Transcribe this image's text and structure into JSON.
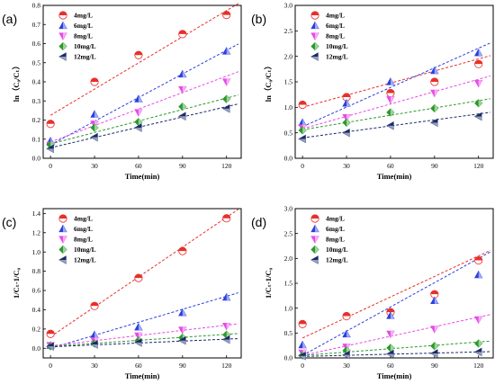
{
  "colors": [
    "#e8302a",
    "#2a3fe0",
    "#e84ae8",
    "#2a9a2a",
    "#1a2a6a"
  ],
  "markers": [
    "circle",
    "triangle-up",
    "triangle-down",
    "diamond",
    "triangle-left"
  ],
  "chart_data": [
    {
      "type": "scatter",
      "panel": "(a)",
      "ylabel": "ln（C₀/Cₜ）",
      "xlabel": "Time(min)",
      "xlim": [
        -5,
        130
      ],
      "ylim": [
        0,
        0.8
      ],
      "xticks": [
        "0",
        "30",
        "60",
        "90",
        "120"
      ],
      "xtick_values": [
        0,
        30,
        60,
        90,
        120
      ],
      "yticks": [
        "0.0",
        "0.1",
        "0.2",
        "0.3",
        "0.4",
        "0.5",
        "0.6",
        "0.7",
        "0.8"
      ],
      "ytick_values": [
        0,
        0.1,
        0.2,
        0.3,
        0.4,
        0.5,
        0.6,
        0.7,
        0.8
      ],
      "legend_position": "top-left",
      "x": [
        0,
        30,
        60,
        90,
        120
      ],
      "series": [
        {
          "name": "4mg/L",
          "values": [
            0.18,
            0.4,
            0.54,
            0.65,
            0.75
          ],
          "fit": [
            0.225,
            0.773
          ]
        },
        {
          "name": "6mg/L",
          "values": [
            0.09,
            0.23,
            0.31,
            0.44,
            0.56
          ],
          "fit": [
            0.07,
            0.565
          ]
        },
        {
          "name": "8mg/L",
          "values": [
            0.07,
            0.18,
            0.24,
            0.36,
            0.4
          ],
          "fit": [
            0.085,
            0.43
          ]
        },
        {
          "name": "10mg/L",
          "values": [
            0.07,
            0.16,
            0.19,
            0.27,
            0.31
          ],
          "fit": [
            0.075,
            0.315
          ]
        },
        {
          "name": "12mg/L",
          "values": [
            0.05,
            0.11,
            0.16,
            0.22,
            0.26
          ],
          "fit": [
            0.055,
            0.27
          ]
        }
      ]
    },
    {
      "type": "scatter",
      "panel": "(b)",
      "ylabel": "ln（C₀/Cₜ）",
      "xlabel": "Time(min)",
      "xlim": [
        -5,
        130
      ],
      "ylim": [
        0,
        3.0
      ],
      "xticks": [
        "0",
        "30",
        "60",
        "90",
        "120"
      ],
      "xtick_values": [
        0,
        30,
        60,
        90,
        120
      ],
      "yticks": [
        "0.0",
        "0.5",
        "1.0",
        "1.5",
        "2.0",
        "2.5",
        "3.0"
      ],
      "ytick_values": [
        0,
        0.5,
        1.0,
        1.5,
        2.0,
        2.5,
        3.0
      ],
      "legend_position": "top-left",
      "x": [
        0,
        30,
        60,
        90,
        120
      ],
      "series": [
        {
          "name": "4mg/L",
          "values": [
            1.05,
            1.2,
            1.28,
            1.5,
            1.85
          ],
          "fit": [
            1.0,
            1.95
          ]
        },
        {
          "name": "6mg/L",
          "values": [
            0.7,
            1.08,
            1.5,
            1.72,
            2.07
          ],
          "fit": [
            0.62,
            2.16
          ]
        },
        {
          "name": "8mg/L",
          "values": [
            0.6,
            0.8,
            1.15,
            1.28,
            1.47
          ],
          "fit": [
            0.58,
            1.55
          ]
        },
        {
          "name": "10mg/L",
          "values": [
            0.55,
            0.7,
            0.9,
            0.98,
            1.08
          ],
          "fit": [
            0.56,
            1.13
          ]
        },
        {
          "name": "12mg/L",
          "values": [
            0.38,
            0.5,
            0.64,
            0.7,
            0.82
          ],
          "fit": [
            0.4,
            0.87
          ]
        }
      ]
    },
    {
      "type": "scatter",
      "panel": "(c)",
      "ylabel": "1/Cₜ-1/C₀",
      "xlabel": "Time(min)",
      "xlim": [
        -5,
        130
      ],
      "ylim": [
        -0.1,
        1.45
      ],
      "xticks": [
        "0",
        "30",
        "60",
        "90",
        "120"
      ],
      "xtick_values": [
        0,
        30,
        60,
        90,
        120
      ],
      "yticks": [
        "0.0",
        "0.2",
        "0.4",
        "0.6",
        "0.8",
        "1.0",
        "1.2",
        "1.4"
      ],
      "ytick_values": [
        0,
        0.2,
        0.4,
        0.6,
        0.8,
        1.0,
        1.2,
        1.4
      ],
      "legend_position": "top-left",
      "x": [
        0,
        30,
        60,
        90,
        120
      ],
      "series": [
        {
          "name": "4mg/L",
          "values": [
            0.15,
            0.44,
            0.73,
            1.01,
            1.35
          ],
          "fit": [
            0.12,
            1.36
          ]
        },
        {
          "name": "6mg/L",
          "values": [
            0.03,
            0.14,
            0.22,
            0.37,
            0.53
          ],
          "fit": [
            0.0,
            0.54
          ]
        },
        {
          "name": "8mg/L",
          "values": [
            0.03,
            0.08,
            0.13,
            0.19,
            0.23
          ],
          "fit": [
            0.025,
            0.24
          ]
        },
        {
          "name": "10mg/L",
          "values": [
            0.02,
            0.05,
            0.08,
            0.11,
            0.14
          ],
          "fit": [
            0.02,
            0.145
          ]
        },
        {
          "name": "12mg/L",
          "values": [
            0.02,
            0.04,
            0.06,
            0.08,
            0.09
          ],
          "fit": [
            0.015,
            0.095
          ]
        }
      ]
    },
    {
      "type": "scatter",
      "panel": "(d)",
      "ylabel": "1/Cₜ-1/C₀",
      "xlabel": "Time(min)",
      "xlim": [
        -5,
        130
      ],
      "ylim": [
        0,
        3.0
      ],
      "xticks": [
        "0",
        "30",
        "60",
        "90",
        "120"
      ],
      "xtick_values": [
        0,
        30,
        60,
        90,
        120
      ],
      "yticks": [
        "0.0",
        "0.5",
        "1.0",
        "1.5",
        "2.0",
        "2.5",
        "3.0"
      ],
      "ytick_values": [
        0,
        0.5,
        1.0,
        1.5,
        2.0,
        2.5,
        3.0
      ],
      "legend_position": "top-left",
      "x": [
        0,
        30,
        60,
        90,
        120
      ],
      "series": [
        {
          "name": "4mg/L",
          "values": [
            0.68,
            0.84,
            0.92,
            1.28,
            1.96
          ],
          "fit": [
            0.4,
            2.05
          ]
        },
        {
          "name": "6mg/L",
          "values": [
            0.26,
            0.48,
            0.85,
            1.15,
            1.67
          ],
          "fit": [
            0.05,
            2.0
          ]
        },
        {
          "name": "8mg/L",
          "values": [
            0.1,
            0.22,
            0.48,
            0.58,
            0.77
          ],
          "fit": [
            0.05,
            0.82
          ]
        },
        {
          "name": "10mg/L",
          "values": [
            0.05,
            0.15,
            0.2,
            0.24,
            0.29
          ],
          "fit": [
            0.05,
            0.32
          ]
        },
        {
          "name": "12mg/L",
          "values": [
            0.04,
            0.06,
            0.08,
            0.09,
            0.12
          ],
          "fit": [
            0.03,
            0.12
          ]
        }
      ]
    }
  ]
}
